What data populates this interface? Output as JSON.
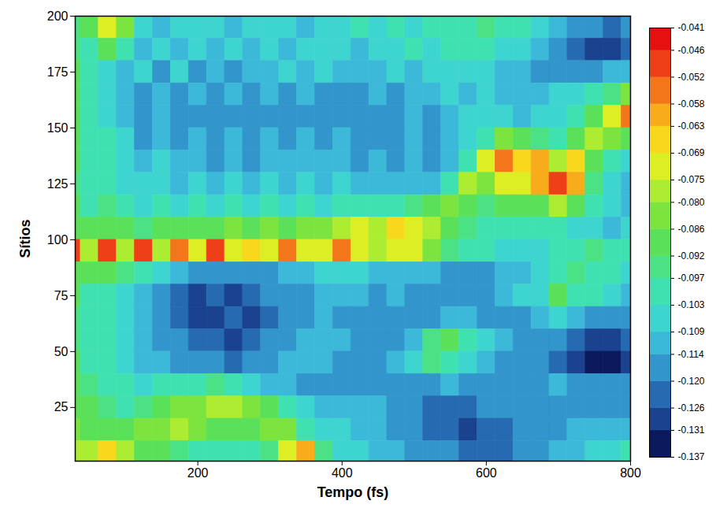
{
  "chart_data": {
    "type": "heatmap",
    "xlabel": "Tempo (fs)",
    "ylabel": "Sítios",
    "xlim": [
      30,
      800
    ],
    "xticks": [
      200,
      400,
      600,
      800
    ],
    "ylim": [
      1,
      200
    ],
    "yticks": [
      25,
      50,
      75,
      100,
      125,
      150,
      175,
      200
    ],
    "x": [
      25,
      50,
      75,
      100,
      125,
      150,
      175,
      200,
      225,
      250,
      275,
      300,
      325,
      350,
      375,
      400,
      425,
      450,
      475,
      500,
      525,
      550,
      575,
      600,
      625,
      650,
      675,
      700,
      725,
      750,
      775,
      800
    ],
    "y": [
      195,
      185,
      175,
      165,
      155,
      145,
      135,
      125,
      115,
      105,
      95,
      85,
      75,
      65,
      55,
      45,
      35,
      25,
      15,
      5
    ],
    "values": [
      [
        -0.095,
        -0.09,
        -0.07,
        -0.085,
        -0.105,
        -0.11,
        -0.105,
        -0.108,
        -0.105,
        -0.11,
        -0.105,
        -0.108,
        -0.105,
        -0.11,
        -0.105,
        -0.108,
        -0.1,
        -0.105,
        -0.1,
        -0.105,
        -0.1,
        -0.098,
        -0.1,
        -0.095,
        -0.098,
        -0.1,
        -0.105,
        -0.11,
        -0.115,
        -0.12,
        -0.125,
        -0.12
      ],
      [
        -0.095,
        -0.098,
        -0.09,
        -0.1,
        -0.11,
        -0.105,
        -0.112,
        -0.105,
        -0.11,
        -0.105,
        -0.11,
        -0.105,
        -0.11,
        -0.105,
        -0.108,
        -0.105,
        -0.11,
        -0.105,
        -0.108,
        -0.1,
        -0.105,
        -0.1,
        -0.098,
        -0.1,
        -0.105,
        -0.108,
        -0.112,
        -0.118,
        -0.122,
        -0.128,
        -0.13,
        -0.125
      ],
      [
        -0.092,
        -0.1,
        -0.105,
        -0.112,
        -0.108,
        -0.115,
        -0.108,
        -0.115,
        -0.11,
        -0.115,
        -0.11,
        -0.112,
        -0.108,
        -0.112,
        -0.108,
        -0.112,
        -0.11,
        -0.112,
        -0.108,
        -0.11,
        -0.105,
        -0.108,
        -0.105,
        -0.108,
        -0.11,
        -0.112,
        -0.115,
        -0.118,
        -0.115,
        -0.118,
        -0.112,
        -0.11
      ],
      [
        -0.09,
        -0.1,
        -0.108,
        -0.112,
        -0.115,
        -0.11,
        -0.118,
        -0.112,
        -0.118,
        -0.112,
        -0.118,
        -0.112,
        -0.115,
        -0.112,
        -0.118,
        -0.115,
        -0.118,
        -0.112,
        -0.115,
        -0.11,
        -0.112,
        -0.108,
        -0.11,
        -0.108,
        -0.112,
        -0.11,
        -0.112,
        -0.108,
        -0.105,
        -0.1,
        -0.095,
        -0.085
      ],
      [
        -0.092,
        -0.098,
        -0.105,
        -0.11,
        -0.118,
        -0.112,
        -0.12,
        -0.115,
        -0.118,
        -0.115,
        -0.12,
        -0.115,
        -0.118,
        -0.115,
        -0.118,
        -0.115,
        -0.12,
        -0.118,
        -0.115,
        -0.112,
        -0.115,
        -0.11,
        -0.108,
        -0.105,
        -0.108,
        -0.11,
        -0.108,
        -0.105,
        -0.1,
        -0.09,
        -0.07,
        -0.055
      ],
      [
        -0.09,
        -0.1,
        -0.102,
        -0.108,
        -0.115,
        -0.11,
        -0.118,
        -0.112,
        -0.118,
        -0.112,
        -0.118,
        -0.112,
        -0.115,
        -0.112,
        -0.115,
        -0.112,
        -0.118,
        -0.115,
        -0.118,
        -0.112,
        -0.115,
        -0.11,
        -0.105,
        -0.098,
        -0.085,
        -0.09,
        -0.095,
        -0.1,
        -0.09,
        -0.08,
        -0.085,
        -0.09
      ],
      [
        -0.092,
        -0.098,
        -0.1,
        -0.105,
        -0.11,
        -0.108,
        -0.112,
        -0.11,
        -0.115,
        -0.11,
        -0.115,
        -0.11,
        -0.112,
        -0.11,
        -0.112,
        -0.11,
        -0.115,
        -0.112,
        -0.115,
        -0.112,
        -0.115,
        -0.11,
        -0.098,
        -0.07,
        -0.055,
        -0.065,
        -0.06,
        -0.08,
        -0.065,
        -0.09,
        -0.1,
        -0.105
      ],
      [
        -0.095,
        -0.1,
        -0.1,
        -0.105,
        -0.108,
        -0.105,
        -0.11,
        -0.108,
        -0.112,
        -0.108,
        -0.112,
        -0.108,
        -0.112,
        -0.108,
        -0.11,
        -0.108,
        -0.112,
        -0.11,
        -0.112,
        -0.11,
        -0.11,
        -0.1,
        -0.08,
        -0.085,
        -0.075,
        -0.07,
        -0.06,
        -0.05,
        -0.06,
        -0.095,
        -0.105,
        -0.11
      ],
      [
        -0.092,
        -0.098,
        -0.095,
        -0.1,
        -0.105,
        -0.1,
        -0.105,
        -0.1,
        -0.108,
        -0.102,
        -0.108,
        -0.1,
        -0.105,
        -0.1,
        -0.105,
        -0.1,
        -0.102,
        -0.098,
        -0.1,
        -0.095,
        -0.092,
        -0.085,
        -0.088,
        -0.095,
        -0.09,
        -0.092,
        -0.088,
        -0.08,
        -0.09,
        -0.1,
        -0.108,
        -0.112
      ],
      [
        -0.09,
        -0.088,
        -0.09,
        -0.092,
        -0.095,
        -0.09,
        -0.092,
        -0.088,
        -0.09,
        -0.085,
        -0.088,
        -0.085,
        -0.088,
        -0.082,
        -0.085,
        -0.08,
        -0.07,
        -0.078,
        -0.068,
        -0.075,
        -0.08,
        -0.088,
        -0.095,
        -0.098,
        -0.1,
        -0.098,
        -0.102,
        -0.1,
        -0.105,
        -0.108,
        -0.11,
        -0.108
      ],
      [
        -0.05,
        -0.078,
        -0.048,
        -0.08,
        -0.05,
        -0.078,
        -0.058,
        -0.07,
        -0.05,
        -0.072,
        -0.068,
        -0.075,
        -0.055,
        -0.075,
        -0.07,
        -0.058,
        -0.072,
        -0.078,
        -0.075,
        -0.07,
        -0.085,
        -0.095,
        -0.1,
        -0.102,
        -0.105,
        -0.108,
        -0.105,
        -0.1,
        -0.098,
        -0.095,
        -0.098,
        -0.1
      ],
      [
        -0.09,
        -0.092,
        -0.09,
        -0.095,
        -0.098,
        -0.105,
        -0.11,
        -0.115,
        -0.118,
        -0.12,
        -0.118,
        -0.115,
        -0.112,
        -0.11,
        -0.108,
        -0.105,
        -0.108,
        -0.11,
        -0.112,
        -0.11,
        -0.112,
        -0.115,
        -0.118,
        -0.115,
        -0.112,
        -0.11,
        -0.105,
        -0.1,
        -0.095,
        -0.098,
        -0.102,
        -0.105
      ],
      [
        -0.092,
        -0.1,
        -0.098,
        -0.105,
        -0.11,
        -0.115,
        -0.122,
        -0.128,
        -0.125,
        -0.128,
        -0.125,
        -0.12,
        -0.118,
        -0.115,
        -0.112,
        -0.11,
        -0.112,
        -0.115,
        -0.112,
        -0.115,
        -0.118,
        -0.12,
        -0.118,
        -0.115,
        -0.112,
        -0.108,
        -0.105,
        -0.092,
        -0.098,
        -0.102,
        -0.108,
        -0.112
      ],
      [
        -0.095,
        -0.102,
        -0.1,
        -0.108,
        -0.112,
        -0.118,
        -0.125,
        -0.128,
        -0.13,
        -0.125,
        -0.128,
        -0.122,
        -0.118,
        -0.115,
        -0.112,
        -0.115,
        -0.118,
        -0.115,
        -0.118,
        -0.12,
        -0.115,
        -0.11,
        -0.112,
        -0.115,
        -0.118,
        -0.115,
        -0.112,
        -0.108,
        -0.112,
        -0.115,
        -0.118,
        -0.12
      ],
      [
        -0.095,
        -0.1,
        -0.102,
        -0.108,
        -0.112,
        -0.115,
        -0.118,
        -0.122,
        -0.125,
        -0.128,
        -0.125,
        -0.12,
        -0.115,
        -0.112,
        -0.11,
        -0.112,
        -0.115,
        -0.118,
        -0.115,
        -0.112,
        -0.095,
        -0.09,
        -0.098,
        -0.108,
        -0.112,
        -0.115,
        -0.118,
        -0.12,
        -0.125,
        -0.128,
        -0.13,
        -0.125
      ],
      [
        -0.092,
        -0.098,
        -0.1,
        -0.105,
        -0.11,
        -0.112,
        -0.115,
        -0.118,
        -0.12,
        -0.122,
        -0.118,
        -0.115,
        -0.112,
        -0.11,
        -0.112,
        -0.115,
        -0.118,
        -0.115,
        -0.112,
        -0.105,
        -0.095,
        -0.098,
        -0.105,
        -0.112,
        -0.115,
        -0.118,
        -0.12,
        -0.122,
        -0.128,
        -0.132,
        -0.135,
        -0.13
      ],
      [
        -0.09,
        -0.095,
        -0.098,
        -0.1,
        -0.105,
        -0.102,
        -0.1,
        -0.098,
        -0.095,
        -0.1,
        -0.105,
        -0.11,
        -0.112,
        -0.115,
        -0.118,
        -0.12,
        -0.118,
        -0.115,
        -0.118,
        -0.12,
        -0.115,
        -0.112,
        -0.115,
        -0.118,
        -0.12,
        -0.118,
        -0.115,
        -0.112,
        -0.115,
        -0.118,
        -0.12,
        -0.118
      ],
      [
        -0.088,
        -0.092,
        -0.095,
        -0.098,
        -0.095,
        -0.09,
        -0.085,
        -0.082,
        -0.08,
        -0.078,
        -0.085,
        -0.092,
        -0.1,
        -0.105,
        -0.11,
        -0.112,
        -0.11,
        -0.112,
        -0.115,
        -0.118,
        -0.122,
        -0.125,
        -0.122,
        -0.12,
        -0.118,
        -0.12,
        -0.118,
        -0.115,
        -0.118,
        -0.12,
        -0.118,
        -0.115
      ],
      [
        -0.085,
        -0.09,
        -0.092,
        -0.09,
        -0.085,
        -0.082,
        -0.08,
        -0.085,
        -0.088,
        -0.092,
        -0.088,
        -0.082,
        -0.085,
        -0.1,
        -0.105,
        -0.108,
        -0.11,
        -0.112,
        -0.115,
        -0.118,
        -0.122,
        -0.125,
        -0.128,
        -0.125,
        -0.122,
        -0.12,
        -0.118,
        -0.115,
        -0.112,
        -0.11,
        -0.112,
        -0.11
      ],
      [
        -0.08,
        -0.078,
        -0.065,
        -0.08,
        -0.088,
        -0.092,
        -0.095,
        -0.098,
        -0.1,
        -0.102,
        -0.098,
        -0.095,
        -0.07,
        -0.06,
        -0.095,
        -0.105,
        -0.108,
        -0.11,
        -0.112,
        -0.115,
        -0.118,
        -0.12,
        -0.122,
        -0.125,
        -0.122,
        -0.118,
        -0.115,
        -0.112,
        -0.11,
        -0.108,
        -0.105,
        -0.102
      ]
    ],
    "colorbar": {
      "range": [
        -0.137,
        -0.041
      ],
      "ticks": [
        -0.041,
        -0.046,
        -0.052,
        -0.058,
        -0.063,
        -0.069,
        -0.075,
        {
          "value": -0.08,
          "label": "-0.080"
        },
        -0.086,
        -0.092,
        -0.097,
        -0.103,
        -0.109,
        -0.114,
        {
          "value": -0.12,
          "label": "-0.120"
        },
        -0.126,
        -0.131,
        -0.137
      ]
    }
  }
}
